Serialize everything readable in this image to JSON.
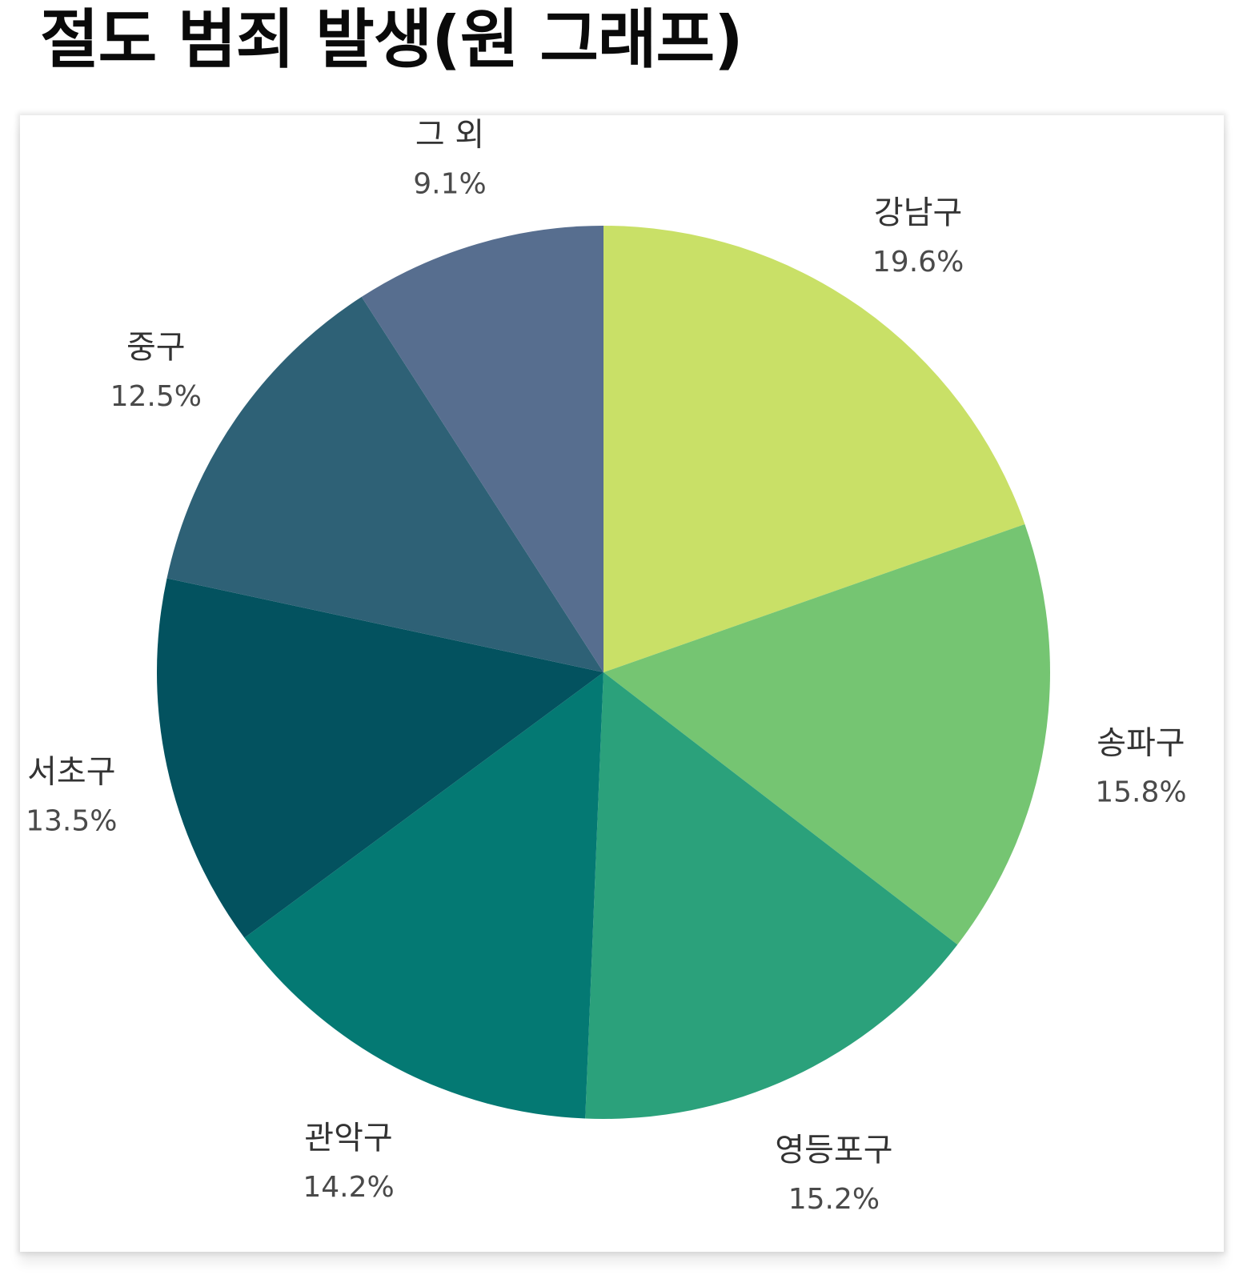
{
  "page": {
    "title": "절도 범죄 발생(원 그래프)"
  },
  "chart_data": {
    "type": "pie",
    "title": "",
    "start_angle_deg": 0,
    "direction": "clockwise",
    "slices": [
      {
        "label": "강남구",
        "value": 19.6,
        "value_label": "19.6%",
        "color": "#c9e067"
      },
      {
        "label": "송파구",
        "value": 15.8,
        "value_label": "15.8%",
        "color": "#75c572"
      },
      {
        "label": "영등포구",
        "value": 15.2,
        "value_label": "15.2%",
        "color": "#2ba17b"
      },
      {
        "label": "관악구",
        "value": 14.2,
        "value_label": "14.2%",
        "color": "#047973"
      },
      {
        "label": "서초구",
        "value": 13.5,
        "value_label": "13.5%",
        "color": "#03525f"
      },
      {
        "label": "중구",
        "value": 12.5,
        "value_label": "12.5%",
        "color": "#2e6176"
      },
      {
        "label": "그 외",
        "value": 9.1,
        "value_label": "9.1%",
        "color": "#576e8f"
      }
    ]
  }
}
